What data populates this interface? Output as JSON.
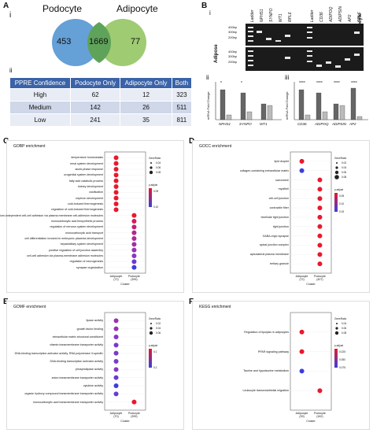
{
  "panels": {
    "A": "A",
    "B": "B",
    "C": "C",
    "D": "D",
    "E": "E",
    "F": "F",
    "Ai": "i",
    "Aii": "ii",
    "Bi": "i",
    "Bii": "ii",
    "Biii": "iii"
  },
  "venn": {
    "left_title": "Podocyte",
    "right_title": "Adipocyte",
    "left_only": "453",
    "overlap": "1669",
    "right_only": "77",
    "left_color": "#4a8fd0",
    "right_color": "#8ec25a"
  },
  "table": {
    "headers": [
      "PPRE Confidence",
      "Podocyte Only",
      "Adipocyte Only",
      "Both"
    ],
    "rows": [
      [
        "High",
        "62",
        "12",
        "323"
      ],
      [
        "Medium",
        "142",
        "26",
        "511"
      ],
      [
        "Low",
        "241",
        "35",
        "811"
      ]
    ]
  },
  "gel": {
    "top_labels": [
      "Ladder",
      "NPHS1",
      "SYNPO",
      "WT1",
      "RPL6",
      "Ladder",
      "CD36",
      "ADIPOQ",
      "ADIPSIN",
      "AP2",
      "RPL6"
    ],
    "podocyte_side": "Podocyte",
    "adipose_side": "Adipose",
    "markers_top": [
      "400bp",
      "300bp",
      "200bp"
    ],
    "markers_bot": [
      "400bp",
      "300bp",
      "200bp"
    ]
  },
  "bar_ii": {
    "ylabel": "mRNA Fold Change",
    "categories": [
      "NPHS1",
      "SYNPO",
      "WT1"
    ],
    "stars": [
      "*",
      "*",
      ""
    ]
  },
  "bar_iii": {
    "ylabel": "mRNA Fold Change",
    "categories": [
      "CD36",
      "ADIPOQ",
      "ADIPSIN",
      "AP2"
    ],
    "stars": [
      "****",
      "****",
      "****",
      "****"
    ]
  },
  "chart_data": [
    {
      "id": "C",
      "type": "scatter",
      "title": "GOBP enrichment",
      "xlabel": "Cluster",
      "x": [
        "Adipocyte\n(72)",
        "Podocyte\n(399)"
      ],
      "terms": [
        "temperature homeostasis",
        "renal system development",
        "acute-phase response",
        "urogenital system development",
        "fatty acid catabolic process",
        "kidney development",
        "ossification",
        "nephron development",
        "cold-induced thermogenesis",
        "regulation of cold-induced thermogenesis",
        "calcium-independent cell-cell adhesion via plasma membrane cell-adhesion molecules",
        "monocarboxylic acid biosynthetic process",
        "regulation of nervous system development",
        "monocarboxylic acid transport",
        "cell differentiation involved in embryonic placenta development",
        "hepatobiliary system development",
        "positive regulation of cell junction assembly",
        "cell-cell adhesion via plasma-membrane adhesion molecules",
        "regulation of neurogenesis",
        "synapse organization"
      ],
      "points": [
        [
          0,
          0,
          "#e8192c"
        ],
        [
          0,
          1,
          "#e8192c"
        ],
        [
          0,
          2,
          "#e8192c"
        ],
        [
          0,
          3,
          "#e8192c"
        ],
        [
          0,
          4,
          "#e8192c"
        ],
        [
          0,
          5,
          "#e8192c"
        ],
        [
          0,
          6,
          "#e8192c"
        ],
        [
          0,
          7,
          "#e8192c"
        ],
        [
          0,
          8,
          "#e8192c"
        ],
        [
          0,
          9,
          "#e8192c"
        ],
        [
          1,
          10,
          "#e8192c"
        ],
        [
          1,
          11,
          "#d21c5a"
        ],
        [
          1,
          12,
          "#c22077"
        ],
        [
          1,
          13,
          "#b82688"
        ],
        [
          1,
          14,
          "#ad2a96"
        ],
        [
          1,
          15,
          "#a22ea4"
        ],
        [
          1,
          16,
          "#9a31b0"
        ],
        [
          1,
          17,
          "#8a36c2"
        ],
        [
          1,
          18,
          "#6a3ad2"
        ],
        [
          1,
          19,
          "#3a3ee0"
        ]
      ],
      "legend_size": "GeneRatio",
      "size_values": [
        "0.04",
        "0.06",
        "0.08"
      ],
      "legend_color": "p.adjust",
      "color_values": [
        "0.05",
        "0.10"
      ]
    },
    {
      "id": "D",
      "type": "scatter",
      "title": "GOCC enrichment",
      "xlabel": "Cluster",
      "x": [
        "Adipocyte\n(72)",
        "Podocyte\n(407)"
      ],
      "terms": [
        "lipid droplet",
        "collagen-containing extracellular matrix",
        "sarcomere",
        "myofibril",
        "cell-cell junction",
        "contractile fiber",
        "bicellular tight junction",
        "tight junction",
        "GABA-ergic synapse",
        "apical junction complex",
        "apicolateral plasma membrane",
        "tertiary granule"
      ],
      "points": [
        [
          0,
          0,
          "#e8192c"
        ],
        [
          0,
          1,
          "#3a3ee0"
        ],
        [
          1,
          2,
          "#e8192c"
        ],
        [
          1,
          3,
          "#e8192c"
        ],
        [
          1,
          4,
          "#e8192c"
        ],
        [
          1,
          5,
          "#e8192c"
        ],
        [
          1,
          6,
          "#e8192c"
        ],
        [
          1,
          7,
          "#e8192c"
        ],
        [
          1,
          8,
          "#e8192c"
        ],
        [
          1,
          9,
          "#e8192c"
        ],
        [
          1,
          10,
          "#e8192c"
        ],
        [
          1,
          11,
          "#e8192c"
        ]
      ],
      "legend_size": "GeneRatio",
      "size_values": [
        "0.02",
        "0.04",
        "0.06",
        "0.08"
      ],
      "legend_color": "p.adjust",
      "color_values": [
        "0.05",
        "0.10",
        "0.15"
      ]
    },
    {
      "id": "E",
      "type": "scatter",
      "title": "GOMF enrichment",
      "xlabel": "Cluster",
      "x": [
        "Adipocyte\n(70)",
        "Podocyte\n(399)"
      ],
      "terms": [
        "lipase activity",
        "growth factor binding",
        "extracellular matrix structural constituent",
        "vitamin transmembrane transporter activity",
        "DNA-binding transcription activator activity, RNA polymerase II-specific",
        "DNA-binding transcription activator activity",
        "phospholipase activity",
        "anion transmembrane transporter activity",
        "cytokine activity",
        "organic hydroxy compound transmembrane transporter activity",
        "monocarboxylic acid transmembrane transporter activity"
      ],
      "points": [
        [
          0,
          0,
          "#9a31b0"
        ],
        [
          0,
          1,
          "#9a31b0"
        ],
        [
          0,
          2,
          "#8a36c2"
        ],
        [
          0,
          3,
          "#7a39cc"
        ],
        [
          0,
          4,
          "#7a39cc"
        ],
        [
          0,
          5,
          "#7a39cc"
        ],
        [
          0,
          6,
          "#8a36c2"
        ],
        [
          0,
          7,
          "#6a3ad2"
        ],
        [
          0,
          8,
          "#3a3ee0"
        ],
        [
          0,
          9,
          "#6a3ad2"
        ],
        [
          1,
          10,
          "#e8192c"
        ]
      ],
      "legend_size": "GeneRatio",
      "size_values": [
        "0.02",
        "0.04",
        "0.06"
      ],
      "legend_color": "p.adjust",
      "color_values": [
        "0.1",
        "0.2"
      ]
    },
    {
      "id": "F",
      "type": "scatter",
      "title": "KEGG enrichment",
      "xlabel": "Cluster",
      "x": [
        "Adipocyte\n(39)",
        "Podocyte\n(162)"
      ],
      "terms": [
        "Regulation of lipolysis in adipocytes",
        "PPAR signaling pathway",
        "Taurine and hypotaurine metabolism",
        "Leukocyte transendothelial migration"
      ],
      "points": [
        [
          0,
          0,
          "#e8192c"
        ],
        [
          0,
          1,
          "#e8192c"
        ],
        [
          0,
          2,
          "#3a3ee0"
        ],
        [
          1,
          3,
          "#e8192c"
        ]
      ],
      "legend_size": "GeneRatio",
      "size_values": [
        "0.04",
        "0.06",
        "0.08"
      ],
      "legend_color": "p.adjust",
      "color_values": [
        "0.025",
        "0.050",
        "0.075"
      ]
    }
  ]
}
